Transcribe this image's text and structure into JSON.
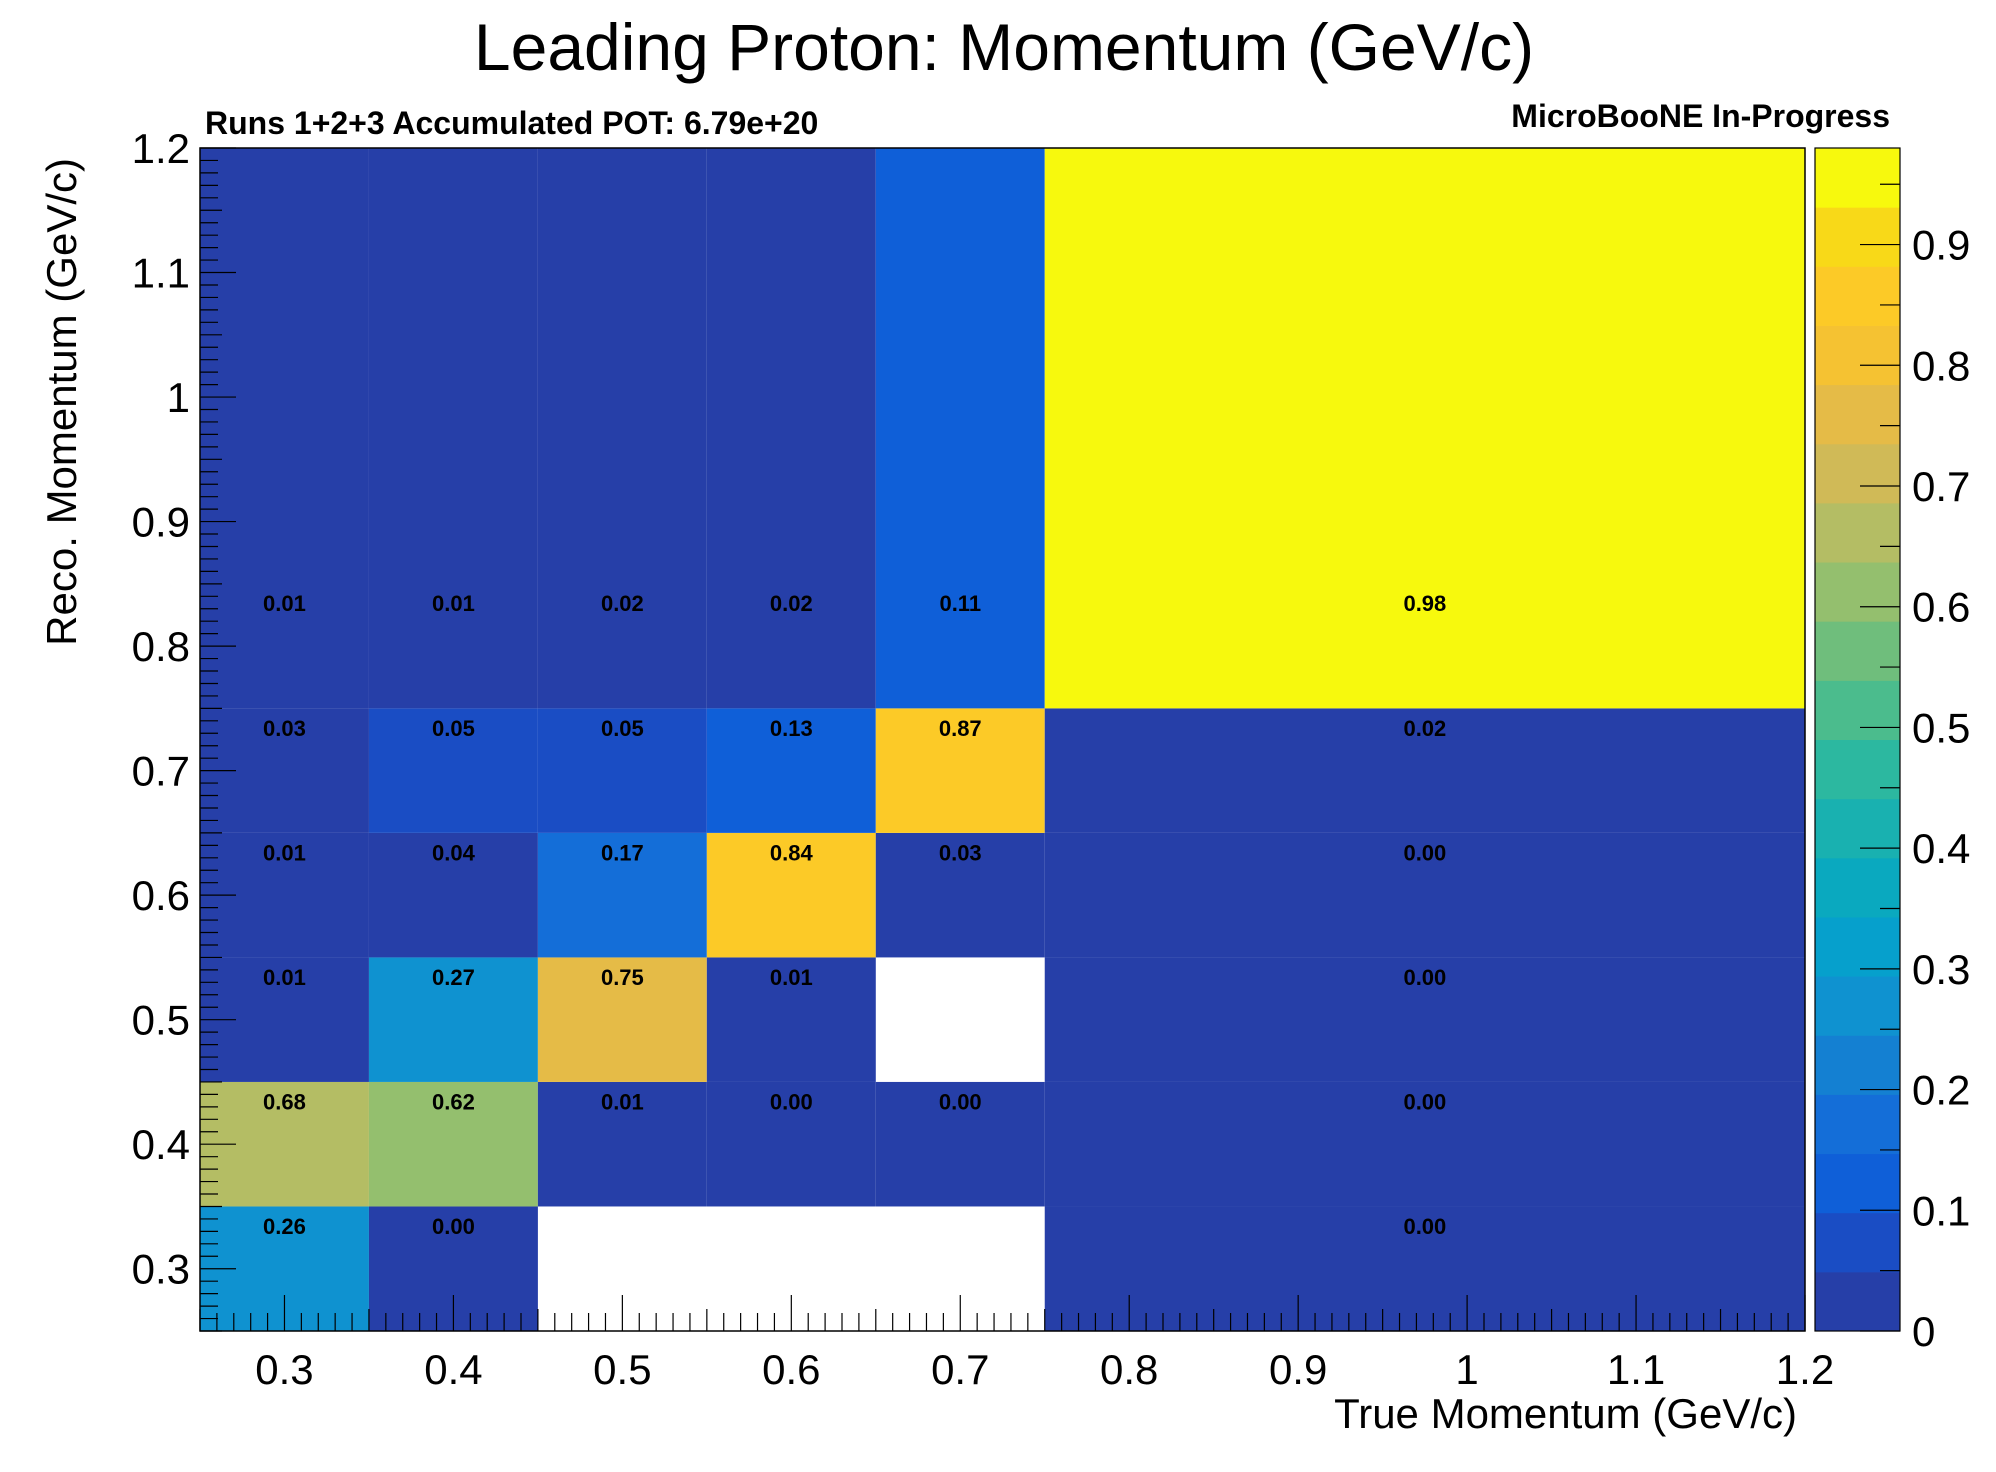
{
  "chart_data": {
    "type": "heatmap",
    "title": "Leading Proton: Momentum (GeV/c)",
    "subtitle_left": "Runs 1+2+3 Accumulated POT: 6.79e+20",
    "subtitle_right": "MicroBooNE In-Progress",
    "xlabel": "True Momentum (GeV/c)",
    "ylabel": "Reco. Momentum (GeV/c)",
    "xlim": [
      0.25,
      1.2
    ],
    "ylim": [
      0.25,
      1.2
    ],
    "x_bin_edges": [
      0.25,
      0.35,
      0.45,
      0.55,
      0.65,
      0.75,
      1.2
    ],
    "y_bin_edges": [
      0.25,
      0.35,
      0.45,
      0.55,
      0.65,
      0.75,
      1.2
    ],
    "x_ticks": [
      "0.3",
      "0.4",
      "0.5",
      "0.6",
      "0.7",
      "0.8",
      "0.9",
      "1",
      "1.1",
      "1.2"
    ],
    "x_tick_values": [
      0.3,
      0.4,
      0.5,
      0.6,
      0.7,
      0.8,
      0.9,
      1.0,
      1.1,
      1.2
    ],
    "y_ticks": [
      "0.3",
      "0.4",
      "0.5",
      "0.6",
      "0.7",
      "0.8",
      "0.9",
      "1",
      "1.1",
      "1.2"
    ],
    "y_tick_values": [
      0.3,
      0.4,
      0.5,
      0.6,
      0.7,
      0.8,
      0.9,
      1.0,
      1.1,
      1.2
    ],
    "values": [
      [
        0.26,
        0.0,
        null,
        null,
        null,
        0.0
      ],
      [
        0.68,
        0.62,
        0.01,
        0.0,
        0.0,
        0.0
      ],
      [
        0.01,
        0.27,
        0.75,
        0.01,
        null,
        0.0
      ],
      [
        0.01,
        0.04,
        0.17,
        0.84,
        0.03,
        0.0
      ],
      [
        0.03,
        0.05,
        0.05,
        0.13,
        0.87,
        0.02
      ],
      [
        0.01,
        0.01,
        0.02,
        0.02,
        0.11,
        0.98
      ]
    ],
    "labels": [
      [
        "0.26",
        "0.00",
        "",
        "",
        "",
        "0.00"
      ],
      [
        "0.68",
        "0.62",
        "0.01",
        "0.00",
        "0.00",
        "0.00"
      ],
      [
        "0.01",
        "0.27",
        "0.75",
        "0.01",
        "",
        "0.00"
      ],
      [
        "0.01",
        "0.04",
        "0.17",
        "0.84",
        "0.03",
        "0.00"
      ],
      [
        "0.03",
        "0.05",
        "0.05",
        "0.13",
        "0.87",
        "0.02"
      ],
      [
        "0.01",
        "0.01",
        "0.02",
        "0.02",
        "0.11",
        "0.98"
      ]
    ],
    "colorbar": {
      "range": [
        0,
        0.98
      ],
      "ticks": [
        "0",
        "0.1",
        "0.2",
        "0.3",
        "0.4",
        "0.5",
        "0.6",
        "0.7",
        "0.8",
        "0.9"
      ],
      "tick_values": [
        0,
        0.1,
        0.2,
        0.3,
        0.4,
        0.5,
        0.6,
        0.7,
        0.8,
        0.9
      ],
      "palette": [
        "#263fa8",
        "#1a4dc4",
        "#0f5fd8",
        "#146ed8",
        "#1480d2",
        "#0f92d0",
        "#06a0cc",
        "#0aa9bf",
        "#19b1b0",
        "#2cb8a0",
        "#4bbc8d",
        "#6fbe7c",
        "#94bf6e",
        "#b4bd64",
        "#d0ba57",
        "#e5bb47",
        "#f5c232",
        "#fcca27",
        "#f8d918",
        "#f7f90d"
      ]
    },
    "grid": false
  }
}
